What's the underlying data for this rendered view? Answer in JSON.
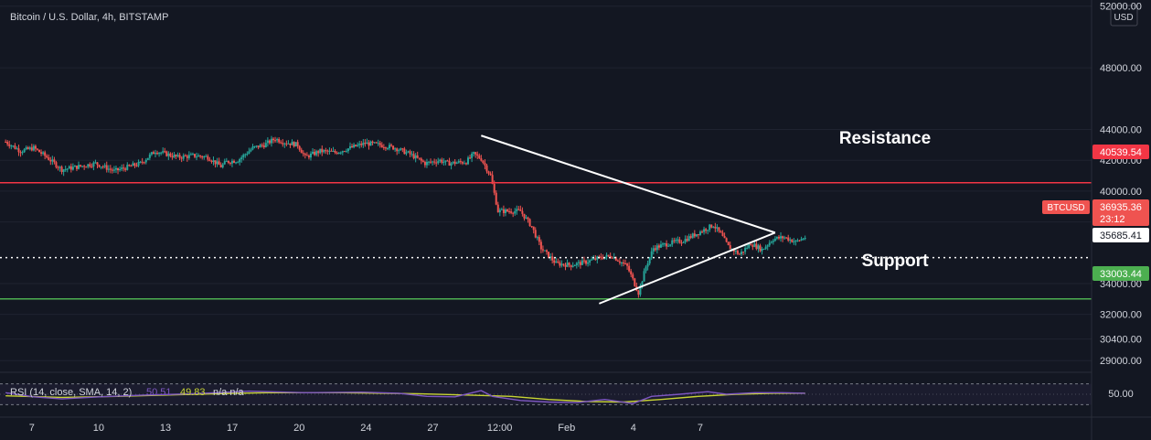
{
  "header": {
    "title": "Bitcoin / U.S. Dollar, 4h, BITSTAMP"
  },
  "price_axis": {
    "currency": "USD"
  },
  "colors": {
    "background": "#131722",
    "up": "#26a69a",
    "down": "#ef5350",
    "resistance": "#f23645",
    "support": "#4caf50",
    "rsi": "#7e57c2",
    "rsi_sma": "#c8d434",
    "grid": "#1f2330",
    "axis_text": "#d1d4dc"
  },
  "annotations": {
    "resistance_label": "Resistance",
    "support_label": "Support",
    "resistance_price": "40539.54",
    "support_price": "33003.44",
    "symbol_tag": "BTCUSD",
    "last_price": "36935.36",
    "countdown": "23:12",
    "dotted_price": "35685.41"
  },
  "rsi_panel": {
    "label": "RSI (14, close, SMA, 14, 2)",
    "rsi_value": "50.51",
    "sma_value": "49.83",
    "na": "n/a n/a",
    "axis_level": "50.00"
  },
  "chart_data": {
    "type": "candlestick",
    "title": "Bitcoin / U.S. Dollar, 4h, BITSTAMP",
    "y_ticks": [
      "52000.00",
      "48000.00",
      "44000.00",
      "42000.00",
      "40000.00",
      "38000.00",
      "34000.00",
      "32000.00",
      "30400.00",
      "29000.00"
    ],
    "x_ticks": [
      "7",
      "10",
      "13",
      "17",
      "20",
      "24",
      "27",
      "12:00",
      "Feb",
      "4",
      "7"
    ],
    "close_path": [
      [
        0,
        43200
      ],
      [
        8,
        42600
      ],
      [
        15,
        42800
      ],
      [
        22,
        42200
      ],
      [
        30,
        41400
      ],
      [
        35,
        41500
      ],
      [
        48,
        41800
      ],
      [
        58,
        41300
      ],
      [
        72,
        41800
      ],
      [
        80,
        42600
      ],
      [
        92,
        42200
      ],
      [
        101,
        42300
      ],
      [
        108,
        42200
      ],
      [
        115,
        41600
      ],
      [
        118,
        41900
      ],
      [
        124,
        42000
      ],
      [
        132,
        42800
      ],
      [
        138,
        43000
      ],
      [
        144,
        43400
      ],
      [
        148,
        43200
      ],
      [
        156,
        43000
      ],
      [
        160,
        42200
      ],
      [
        168,
        42600
      ],
      [
        176,
        42500
      ],
      [
        184,
        42800
      ],
      [
        192,
        43100
      ],
      [
        200,
        43000
      ],
      [
        208,
        42800
      ],
      [
        216,
        42400
      ],
      [
        224,
        41800
      ],
      [
        232,
        42000
      ],
      [
        236,
        41800
      ],
      [
        246,
        41900
      ],
      [
        250,
        42400
      ],
      [
        254,
        42100
      ],
      [
        259,
        41000
      ],
      [
        263,
        38700
      ],
      [
        275,
        38700
      ],
      [
        281,
        37700
      ],
      [
        286,
        36300
      ],
      [
        294,
        35300
      ],
      [
        302,
        35200
      ],
      [
        310,
        35400
      ],
      [
        318,
        35700
      ],
      [
        324,
        35800
      ],
      [
        332,
        35100
      ],
      [
        338,
        33400
      ],
      [
        342,
        35100
      ],
      [
        346,
        36300
      ],
      [
        354,
        36600
      ],
      [
        362,
        36800
      ],
      [
        370,
        37300
      ],
      [
        378,
        37800
      ],
      [
        382,
        37200
      ],
      [
        386,
        36400
      ],
      [
        392,
        35900
      ],
      [
        398,
        36600
      ],
      [
        404,
        36200
      ],
      [
        410,
        36900
      ],
      [
        416,
        37000
      ],
      [
        422,
        36700
      ],
      [
        427,
        37000
      ]
    ],
    "triangle": {
      "upper_line": {
        "from": [
          254,
          43600
        ],
        "to": [
          313,
          38400
        ]
      },
      "lower_line": {
        "from": [
          317,
          32700
        ],
        "to": [
          391,
          36350
        ]
      },
      "apex": [
        411,
        37300
      ]
    },
    "horizontal_levels": [
      {
        "name": "Resistance",
        "y": 40539.54
      },
      {
        "name": "Support",
        "y": 33003.44
      },
      {
        "name": "dotted",
        "y": 35685.41
      }
    ],
    "rsi": {
      "values": [
        [
          0,
          53
        ],
        [
          15,
          45
        ],
        [
          30,
          41
        ],
        [
          50,
          45
        ],
        [
          72,
          48
        ],
        [
          100,
          51
        ],
        [
          130,
          56
        ],
        [
          160,
          53
        ],
        [
          190,
          54
        ],
        [
          210,
          52
        ],
        [
          225,
          46
        ],
        [
          240,
          45
        ],
        [
          254,
          57
        ],
        [
          260,
          46
        ],
        [
          275,
          38
        ],
        [
          290,
          35
        ],
        [
          305,
          34
        ],
        [
          320,
          40
        ],
        [
          335,
          32
        ],
        [
          345,
          46
        ],
        [
          360,
          50
        ],
        [
          375,
          55
        ],
        [
          385,
          50
        ],
        [
          400,
          53
        ],
        [
          415,
          53
        ],
        [
          427,
          52
        ]
      ],
      "sma": [
        [
          0,
          47
        ],
        [
          30,
          44
        ],
        [
          60,
          46
        ],
        [
          100,
          50
        ],
        [
          140,
          53
        ],
        [
          180,
          53
        ],
        [
          220,
          51
        ],
        [
          250,
          48
        ],
        [
          270,
          46
        ],
        [
          290,
          40
        ],
        [
          310,
          36
        ],
        [
          330,
          35
        ],
        [
          350,
          40
        ],
        [
          370,
          46
        ],
        [
          390,
          50
        ],
        [
          410,
          52
        ],
        [
          427,
          52
        ]
      ],
      "ylim": [
        20,
        80
      ],
      "bands": [
        70,
        30
      ]
    },
    "xlim": [
      -3,
      580
    ],
    "ylim": [
      28300,
      52400
    ]
  }
}
